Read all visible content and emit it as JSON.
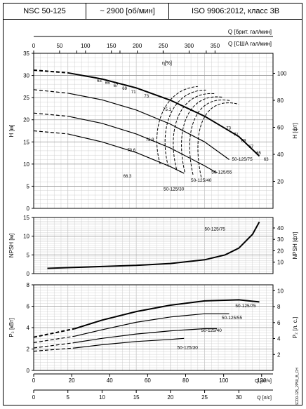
{
  "header": {
    "model": "NSC 50-125",
    "speed": "~ 2900 [об/мин]",
    "standard": "ISO 9906:2012, класс 3B"
  },
  "footer_code": "NSCD0-125_2P50_B_CH",
  "colors": {
    "line": "#000000",
    "grid": "#c8c8c8"
  },
  "chart_data": [
    {
      "type": "line",
      "title": "",
      "xlabel": "Q [м³/ч]",
      "ylabel": "H [м]",
      "ylabel_right": "H [фт]",
      "x_top_labels": [
        "Q [брит. гал/мин]",
        "Q [США гал/мин]"
      ],
      "x_top1_ticks": [
        0,
        50,
        100,
        150,
        200,
        250,
        300,
        350
      ],
      "x_top2_ticks": [
        0,
        100,
        200,
        300,
        400
      ],
      "xlim": [
        0,
        35
      ],
      "ylim": [
        0,
        35
      ],
      "y_right_ticks": [
        20,
        40,
        60,
        80,
        100
      ],
      "grid": true,
      "efficiency_label": "η[%]",
      "series": [
        {
          "name": "50-125/75",
          "x": [
            0,
            5,
            10,
            15,
            20,
            25,
            30,
            33
          ],
          "y": [
            31.2,
            30.6,
            29.2,
            27.2,
            24.4,
            20.8,
            16.2,
            11.8
          ],
          "dashed_until": 5
        },
        {
          "name": "50-125/55",
          "x": [
            0,
            5,
            10,
            15,
            20,
            25,
            28.6
          ],
          "y": [
            26.8,
            26.0,
            24.5,
            22.2,
            19.0,
            15.0,
            11.0
          ],
          "dashed_until": 5
        },
        {
          "name": "50-125/40",
          "x": [
            0,
            5,
            10,
            15,
            20,
            25,
            26.8
          ],
          "y": [
            21.5,
            20.8,
            19.2,
            16.8,
            13.6,
            9.6,
            8.0
          ],
          "dashed_until": 5
        },
        {
          "name": "50-125/30",
          "x": [
            0,
            5,
            10,
            15,
            20,
            22
          ],
          "y": [
            17.5,
            16.8,
            15.0,
            12.6,
            9.4,
            7.9
          ],
          "dashed_until": 5
        }
      ],
      "efficiency_labels": [
        "63",
        "65",
        "67",
        "69",
        "71",
        "73",
        "75.1",
        "73",
        "71",
        "69",
        "67",
        "65",
        "63",
        "72.9",
        "70.6",
        "66.3"
      ]
    },
    {
      "type": "line",
      "xlabel": "",
      "ylabel": "NPSH [м]",
      "ylabel_right": "NPSH [фт]",
      "xlim": [
        0,
        35
      ],
      "ylim": [
        0,
        15
      ],
      "y_right_ticks": [
        10,
        20,
        30,
        40
      ],
      "grid": true,
      "series": [
        {
          "name": "50-125/75",
          "x": [
            2,
            5,
            10,
            15,
            20,
            25,
            28,
            30,
            32,
            33
          ],
          "y": [
            1.4,
            1.6,
            1.9,
            2.2,
            2.7,
            3.7,
            5.0,
            6.8,
            10.5,
            13.8
          ]
        }
      ]
    },
    {
      "type": "line",
      "xlabel": "Q [л/с]",
      "ylabel": "P₂ [кВт]",
      "ylabel_right": "P₂ [л. с.]",
      "x_bottom_ticks": [
        0,
        5,
        10,
        15,
        20,
        25,
        30
      ],
      "xlim": [
        0,
        35
      ],
      "ylim": [
        0,
        8
      ],
      "y_right_ticks": [
        2,
        4,
        6,
        8,
        10
      ],
      "grid": true,
      "series": [
        {
          "name": "50-125/75",
          "x": [
            0,
            6,
            10,
            15,
            20,
            25,
            30,
            33
          ],
          "y": [
            3.1,
            3.9,
            4.7,
            5.5,
            6.1,
            6.5,
            6.6,
            6.4
          ],
          "dashed_until": 6
        },
        {
          "name": "50-125/55",
          "x": [
            0,
            6,
            10,
            15,
            20,
            25,
            28.6
          ],
          "y": [
            2.6,
            3.2,
            3.8,
            4.5,
            5.0,
            5.3,
            5.3
          ],
          "dashed_until": 6
        },
        {
          "name": "50-125/40",
          "x": [
            0,
            6,
            10,
            15,
            20,
            25,
            26.8
          ],
          "y": [
            2.1,
            2.6,
            3.0,
            3.4,
            3.7,
            3.9,
            3.9
          ],
          "dashed_until": 6
        },
        {
          "name": "50-125/30",
          "x": [
            0,
            6,
            10,
            15,
            20,
            22
          ],
          "y": [
            1.8,
            2.1,
            2.4,
            2.7,
            2.9,
            3.0
          ],
          "dashed_until": 6
        }
      ]
    }
  ]
}
